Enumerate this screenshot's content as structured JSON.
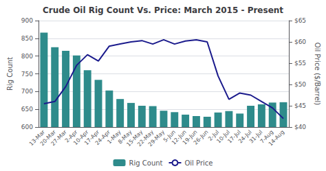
{
  "chart_data": {
    "type": "bar",
    "title": "Crude Oil Rig Count Vs. Price: March 2015 - Present",
    "ylabel": "Rig Count",
    "y2label": "Oil Price ($/Barrel)",
    "categories": [
      "13-Mar",
      "20-Mar",
      "27-Mar",
      "2-Apr",
      "10-Apr",
      "17-Apr",
      "24-Apr",
      "1-May",
      "8-May",
      "15-May",
      "22-May",
      "29-May",
      "5-Jun",
      "12-Jun",
      "19-Jun",
      "26-Jun",
      "2-Jul",
      "10-Jul",
      "17-Jul",
      "24-Jul",
      "31-Jul",
      "7-Aug",
      "14-Aug"
    ],
    "series": [
      {
        "name": "Rig Count",
        "type": "bar",
        "color": "#2e8b8b",
        "values": [
          866,
          825,
          815,
          802,
          760,
          733,
          703,
          679,
          668,
          660,
          659,
          646,
          642,
          635,
          631,
          629,
          641,
          645,
          638,
          660,
          664,
          669,
          670
        ]
      },
      {
        "name": "Oil Price",
        "type": "line",
        "color": "#1a1a8c",
        "axis": "y2",
        "values": [
          45.5,
          46.0,
          49.5,
          54.5,
          57.0,
          55.5,
          59.0,
          59.5,
          60.0,
          60.3,
          59.5,
          60.5,
          59.5,
          60.2,
          60.5,
          60.0,
          52.0,
          46.5,
          48.0,
          47.5,
          46.0,
          44.5,
          42.0
        ]
      }
    ],
    "ylim": [
      600,
      900
    ],
    "yticks": [
      600,
      650,
      700,
      750,
      800,
      850,
      900
    ],
    "y2lim": [
      40,
      65
    ],
    "y2ticks": [
      {
        "value": 40,
        "label": "$40"
      },
      {
        "value": 45,
        "label": "$45"
      },
      {
        "value": 50,
        "label": "$50"
      },
      {
        "value": 55,
        "label": "$55"
      },
      {
        "value": 60,
        "label": "$60"
      },
      {
        "value": 65,
        "label": "$65"
      }
    ],
    "grid": true,
    "legend": "bottom"
  }
}
